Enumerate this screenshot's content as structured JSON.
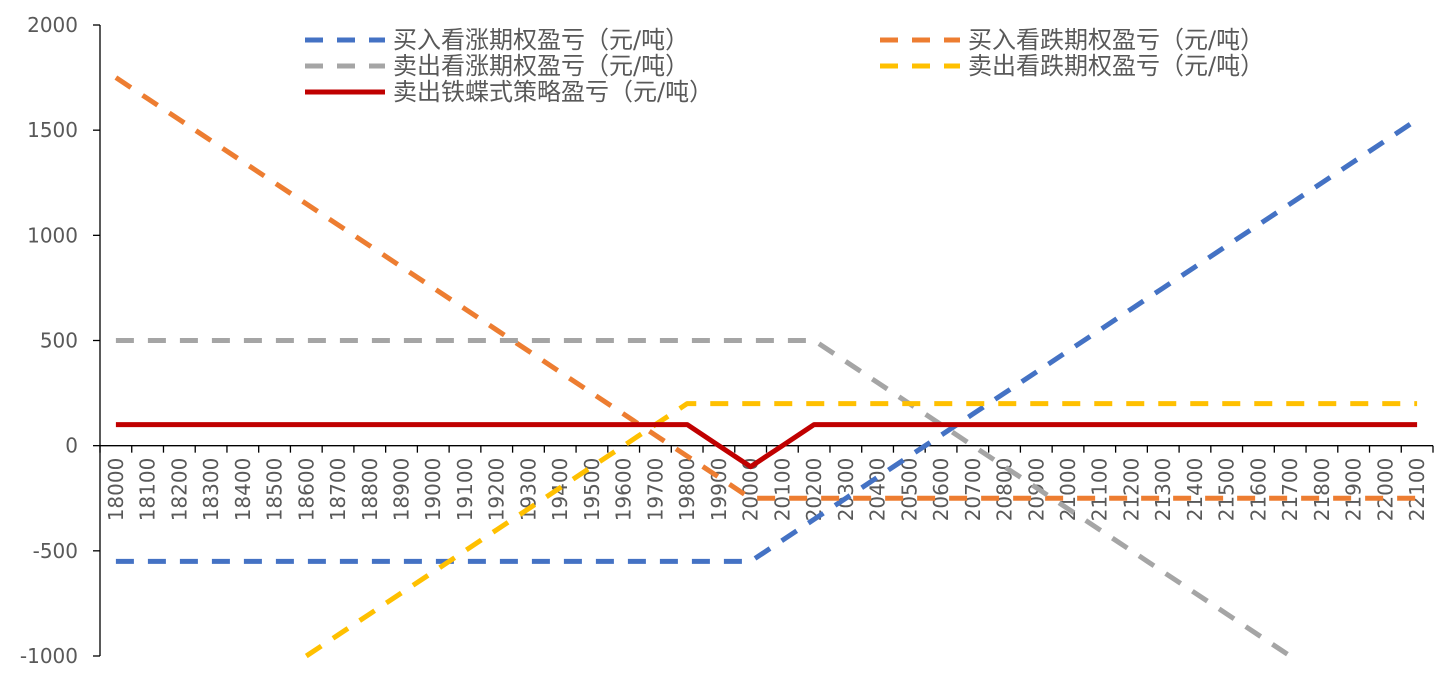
{
  "chart_data": {
    "type": "line",
    "title": "",
    "xlabel": "",
    "ylabel": "",
    "ylim": [
      -1000,
      2000
    ],
    "yticks": [
      "2000",
      "1500",
      "1000",
      "500",
      "0",
      "-500",
      "-1000"
    ],
    "categories": [
      "18000",
      "18100",
      "18200",
      "18300",
      "18400",
      "18500",
      "18600",
      "18700",
      "18800",
      "18900",
      "19000",
      "19100",
      "19200",
      "19300",
      "19400",
      "19500",
      "19600",
      "19700",
      "19800",
      "19900",
      "20000",
      "20100",
      "20200",
      "20300",
      "20400",
      "20500",
      "20600",
      "20700",
      "20800",
      "20900",
      "21000",
      "21100",
      "21200",
      "21300",
      "21400",
      "21500",
      "21600",
      "21700",
      "21800",
      "21900",
      "22000",
      "22100"
    ],
    "legend_position": "top",
    "series": [
      {
        "name": "买入看涨期权盈亏（元/吨）",
        "color": "#4472C4",
        "style": "dashed",
        "values": [
          -550,
          -550,
          -550,
          -550,
          -550,
          -550,
          -550,
          -550,
          -550,
          -550,
          -550,
          -550,
          -550,
          -550,
          -550,
          -550,
          -550,
          -550,
          -550,
          -550,
          -550,
          -450,
          -350,
          -250,
          -150,
          -50,
          50,
          150,
          250,
          350,
          450,
          550,
          650,
          750,
          850,
          950,
          1050,
          1150,
          1250,
          1350,
          1450,
          1550
        ]
      },
      {
        "name": "买入看跌期权盈亏（元/吨）",
        "color": "#ED7D31",
        "style": "dashed",
        "values": [
          1750,
          1650,
          1550,
          1450,
          1350,
          1250,
          1150,
          1050,
          950,
          850,
          750,
          650,
          550,
          450,
          350,
          250,
          150,
          50,
          -50,
          -150,
          -250,
          -250,
          -250,
          -250,
          -250,
          -250,
          -250,
          -250,
          -250,
          -250,
          -250,
          -250,
          -250,
          -250,
          -250,
          -250,
          -250,
          -250,
          -250,
          -250,
          -250,
          -250
        ]
      },
      {
        "name": "卖出看涨期权盈亏（元/吨）",
        "color": "#A5A5A5",
        "style": "dashed",
        "values": [
          500,
          500,
          500,
          500,
          500,
          500,
          500,
          500,
          500,
          500,
          500,
          500,
          500,
          500,
          500,
          500,
          500,
          500,
          500,
          500,
          500,
          500,
          500,
          400,
          300,
          200,
          100,
          0,
          -100,
          -200,
          -300,
          -400,
          -500,
          -600,
          -700,
          -800,
          -900,
          -1000,
          null,
          null,
          null,
          null
        ]
      },
      {
        "name": "卖出看跌期权盈亏（元/吨）",
        "color": "#FFC000",
        "style": "dashed",
        "values": [
          null,
          null,
          null,
          null,
          null,
          null,
          -1000,
          -900,
          -800,
          -700,
          -600,
          -500,
          -400,
          -300,
          -200,
          -100,
          0,
          100,
          200,
          200,
          200,
          200,
          200,
          200,
          200,
          200,
          200,
          200,
          200,
          200,
          200,
          200,
          200,
          200,
          200,
          200,
          200,
          200,
          200,
          200,
          200,
          200
        ]
      },
      {
        "name": "卖出铁蝶式策略盈亏（元/吨）",
        "color": "#C00000",
        "style": "solid",
        "values": [
          100,
          100,
          100,
          100,
          100,
          100,
          100,
          100,
          100,
          100,
          100,
          100,
          100,
          100,
          100,
          100,
          100,
          100,
          100,
          0,
          -100,
          0,
          100,
          100,
          100,
          100,
          100,
          100,
          100,
          100,
          100,
          100,
          100,
          100,
          100,
          100,
          100,
          100,
          100,
          100,
          100,
          100
        ]
      }
    ]
  }
}
